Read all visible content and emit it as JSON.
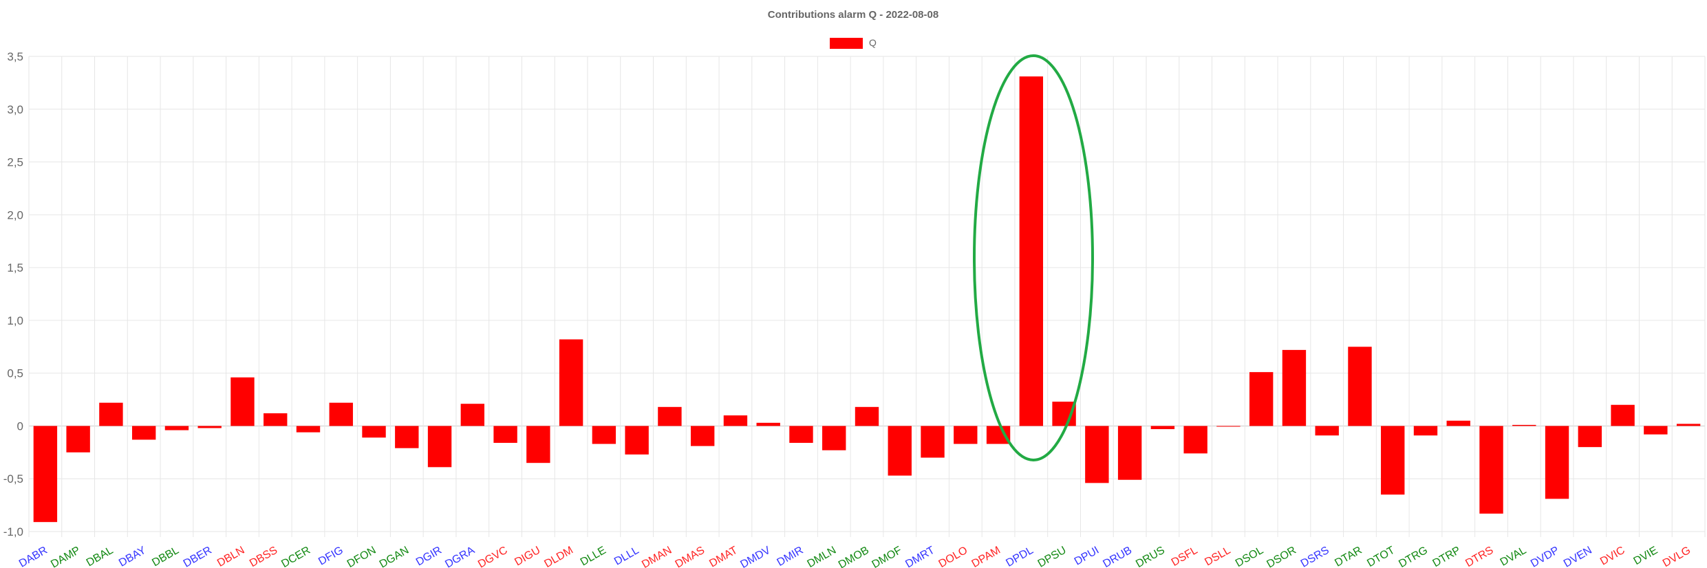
{
  "chart_data": {
    "type": "bar",
    "title": "Contributions alarm Q - 2022-08-08",
    "legend": {
      "label": "Q",
      "placement": "top-center"
    },
    "bar_color": "#ff0000",
    "grid": true,
    "ylim": [
      -1.0,
      3.5
    ],
    "yticks": [
      "-1,0",
      "-0,5",
      "0",
      "0,5",
      "1,0",
      "1,5",
      "2,0",
      "2,5",
      "3,0",
      "3,5"
    ],
    "ytick_values": [
      -1.0,
      -0.5,
      0,
      0.5,
      1.0,
      1.5,
      2.0,
      2.5,
      3.0,
      3.5
    ],
    "categories": [
      "DABR",
      "DAMP",
      "DBAL",
      "DBAY",
      "DBBL",
      "DBER",
      "DBLN",
      "DBSS",
      "DCER",
      "DFIG",
      "DFON",
      "DGAN",
      "DGIR",
      "DGRA",
      "DGVC",
      "DIGU",
      "DLDM",
      "DLLE",
      "DLLL",
      "DMAN",
      "DMAS",
      "DMAT",
      "DMDV",
      "DMIR",
      "DMLN",
      "DMOB",
      "DMOF",
      "DMRT",
      "DOLO",
      "DPAM",
      "DPDL",
      "DPSU",
      "DPUI",
      "DRUB",
      "DRUS",
      "DSFL",
      "DSLL",
      "DSOL",
      "DSOR",
      "DSRS",
      "DTAR",
      "DTOT",
      "DTRG",
      "DTRP",
      "DTRS",
      "DVAL",
      "DVDP",
      "DVEN",
      "DVIC",
      "DVIE",
      "DVLG"
    ],
    "label_colors": [
      "blue",
      "green",
      "green",
      "blue",
      "green",
      "blue",
      "red",
      "red",
      "green",
      "blue",
      "green",
      "green",
      "blue",
      "blue",
      "red",
      "red",
      "red",
      "green",
      "blue",
      "red",
      "red",
      "red",
      "blue",
      "blue",
      "green",
      "green",
      "green",
      "blue",
      "red",
      "red",
      "blue",
      "green",
      "blue",
      "blue",
      "green",
      "red",
      "red",
      "green",
      "green",
      "blue",
      "green",
      "green",
      "green",
      "green",
      "red",
      "green",
      "blue",
      "blue",
      "red",
      "green",
      "red"
    ],
    "values": [
      -0.91,
      -0.25,
      0.22,
      -0.13,
      -0.04,
      -0.02,
      0.46,
      0.12,
      -0.06,
      0.22,
      -0.11,
      -0.21,
      -0.39,
      0.21,
      -0.16,
      -0.35,
      0.82,
      -0.17,
      -0.27,
      0.18,
      -0.19,
      0.1,
      0.03,
      -0.16,
      -0.23,
      0.18,
      -0.47,
      -0.3,
      -0.17,
      -0.17,
      3.31,
      0.23,
      -0.54,
      -0.51,
      -0.03,
      -0.26,
      0.0,
      0.51,
      0.72,
      -0.09,
      0.75,
      -0.65,
      -0.09,
      0.05,
      -0.83,
      0.01,
      -0.69,
      -0.2,
      0.2,
      -0.08,
      0.02
    ],
    "annotation": {
      "shape": "ellipse",
      "color": "#22aa44",
      "target_category": "DPDL"
    }
  },
  "colors": {
    "blue": "#3333ff",
    "green": "#118811",
    "red": "#ff2222",
    "grid": "#e6e6e6",
    "axis_text": "#666666"
  }
}
